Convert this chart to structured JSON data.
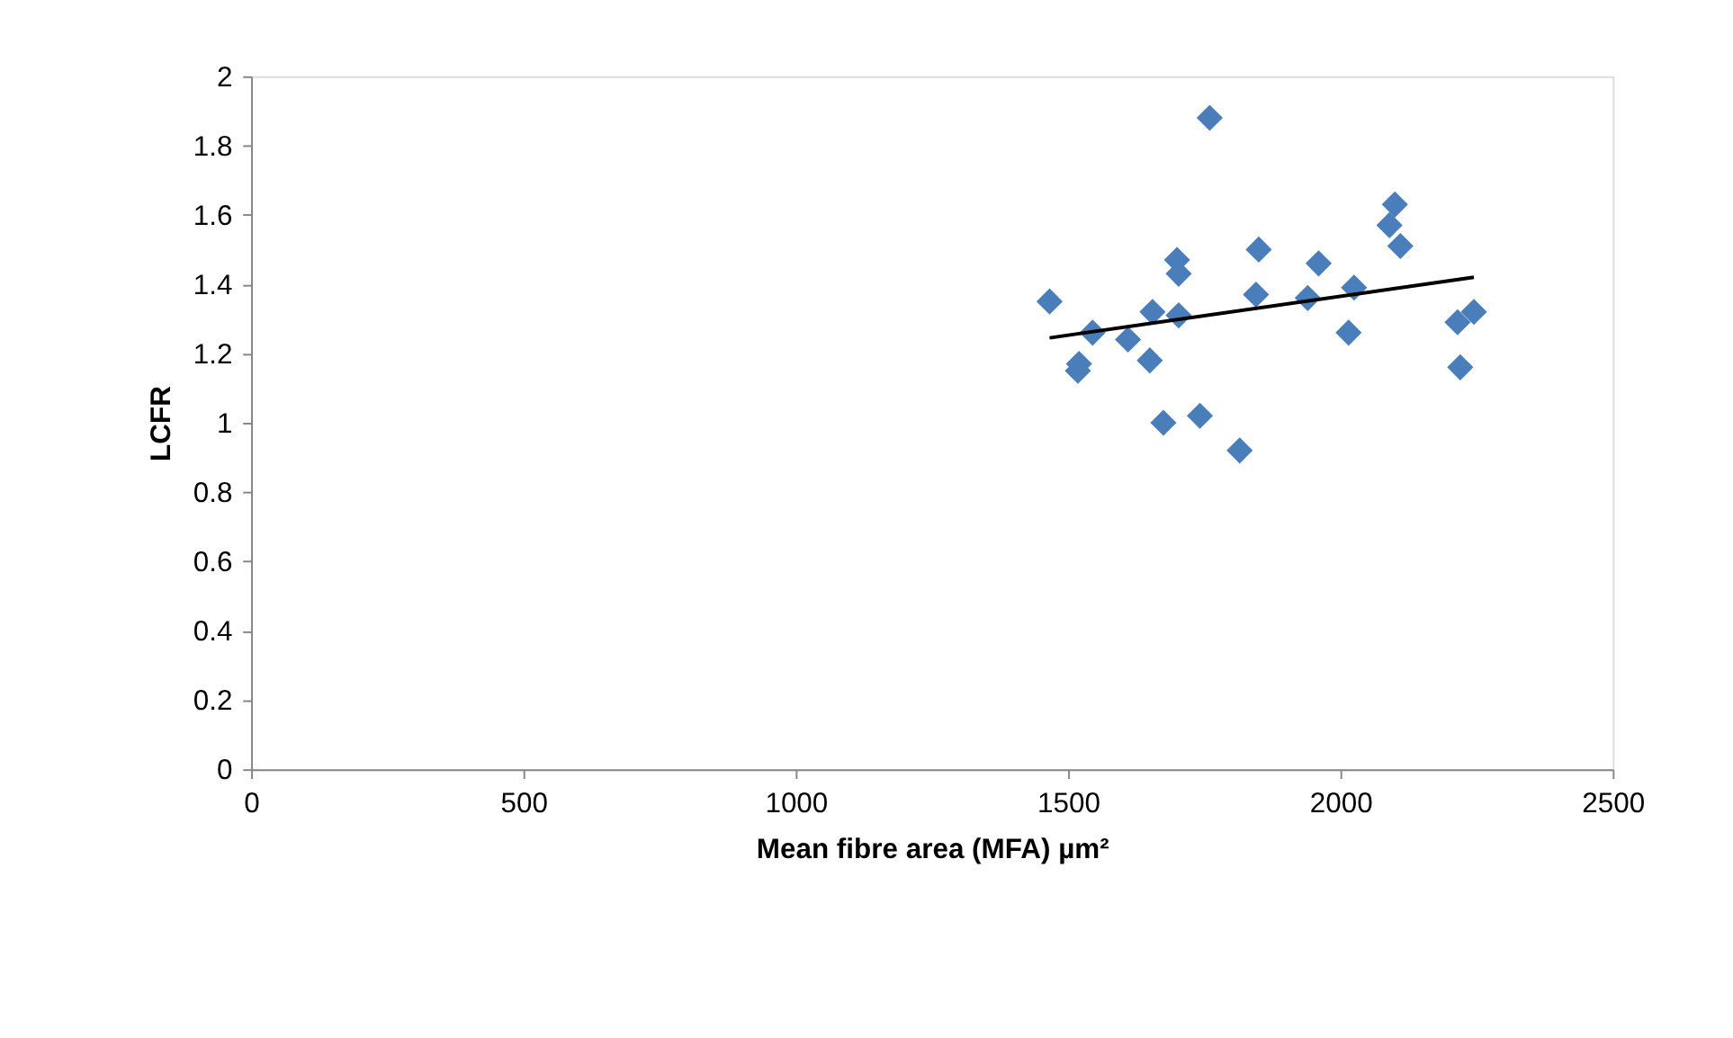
{
  "chart_data": {
    "type": "scatter",
    "xlabel": "Mean fibre area (MFA) µm²",
    "ylabel": "LCFR",
    "xlim": [
      0,
      2500
    ],
    "xticks": [
      0,
      500,
      1000,
      1500,
      2000,
      2500
    ],
    "ylim": [
      0,
      2
    ],
    "yticks": [
      0,
      0.2,
      0.4,
      0.6,
      0.8,
      1,
      1.2,
      1.4,
      1.6,
      1.8,
      2
    ],
    "grid": false,
    "marker": "diamond",
    "series": [
      {
        "color": "#4a7ebb",
        "x": [
          1466,
          1520,
          1518,
          1545,
          1610,
          1650,
          1655,
          1675,
          1700,
          1703,
          1703,
          1742,
          1760,
          1815,
          1845,
          1850,
          1940,
          1960,
          2015,
          2025,
          2090,
          2100,
          2110,
          2215,
          2220,
          2245
        ],
        "values": [
          1.35,
          1.17,
          1.15,
          1.26,
          1.24,
          1.18,
          1.32,
          1.0,
          1.47,
          1.43,
          1.31,
          1.02,
          1.88,
          0.92,
          1.37,
          1.5,
          1.36,
          1.46,
          1.26,
          1.39,
          1.57,
          1.63,
          1.51,
          1.29,
          1.16,
          1.32
        ]
      },
      {
        "type": "line",
        "color": "#000000",
        "x": [
          1466,
          2245
        ],
        "values": [
          1.245,
          1.42
        ],
        "marker": "none"
      }
    ]
  }
}
